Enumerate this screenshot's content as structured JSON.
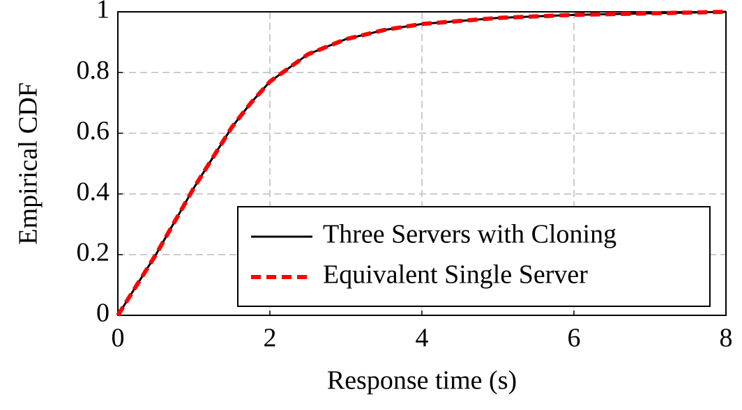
{
  "chart_data": {
    "type": "line",
    "x_label": "Response time (s)",
    "y_label": "Empirical CDF",
    "x": [
      0,
      0.25,
      0.5,
      0.75,
      1,
      1.25,
      1.5,
      1.75,
      2,
      2.5,
      3,
      3.5,
      4,
      4.5,
      5,
      6,
      7,
      8
    ],
    "series": [
      {
        "name": "Three Servers with Cloning",
        "color": "#000000",
        "style": "solid",
        "values": [
          0,
          0.1,
          0.2,
          0.31,
          0.42,
          0.52,
          0.62,
          0.7,
          0.77,
          0.86,
          0.91,
          0.94,
          0.96,
          0.97,
          0.98,
          0.99,
          0.995,
          1
        ]
      },
      {
        "name": "Equivalent Single Server",
        "color": "#ff0000",
        "style": "dashed",
        "values": [
          0,
          0.1,
          0.2,
          0.31,
          0.42,
          0.52,
          0.62,
          0.7,
          0.77,
          0.86,
          0.91,
          0.94,
          0.96,
          0.97,
          0.98,
          0.99,
          0.995,
          1
        ]
      }
    ],
    "xlim": [
      0,
      8
    ],
    "xticks": [
      0,
      2,
      4,
      6,
      8
    ],
    "ylim": [
      0,
      1
    ],
    "yticks": [
      0,
      0.2,
      0.4,
      0.6,
      0.8,
      1
    ],
    "grid": true,
    "legend": "lower-right"
  }
}
